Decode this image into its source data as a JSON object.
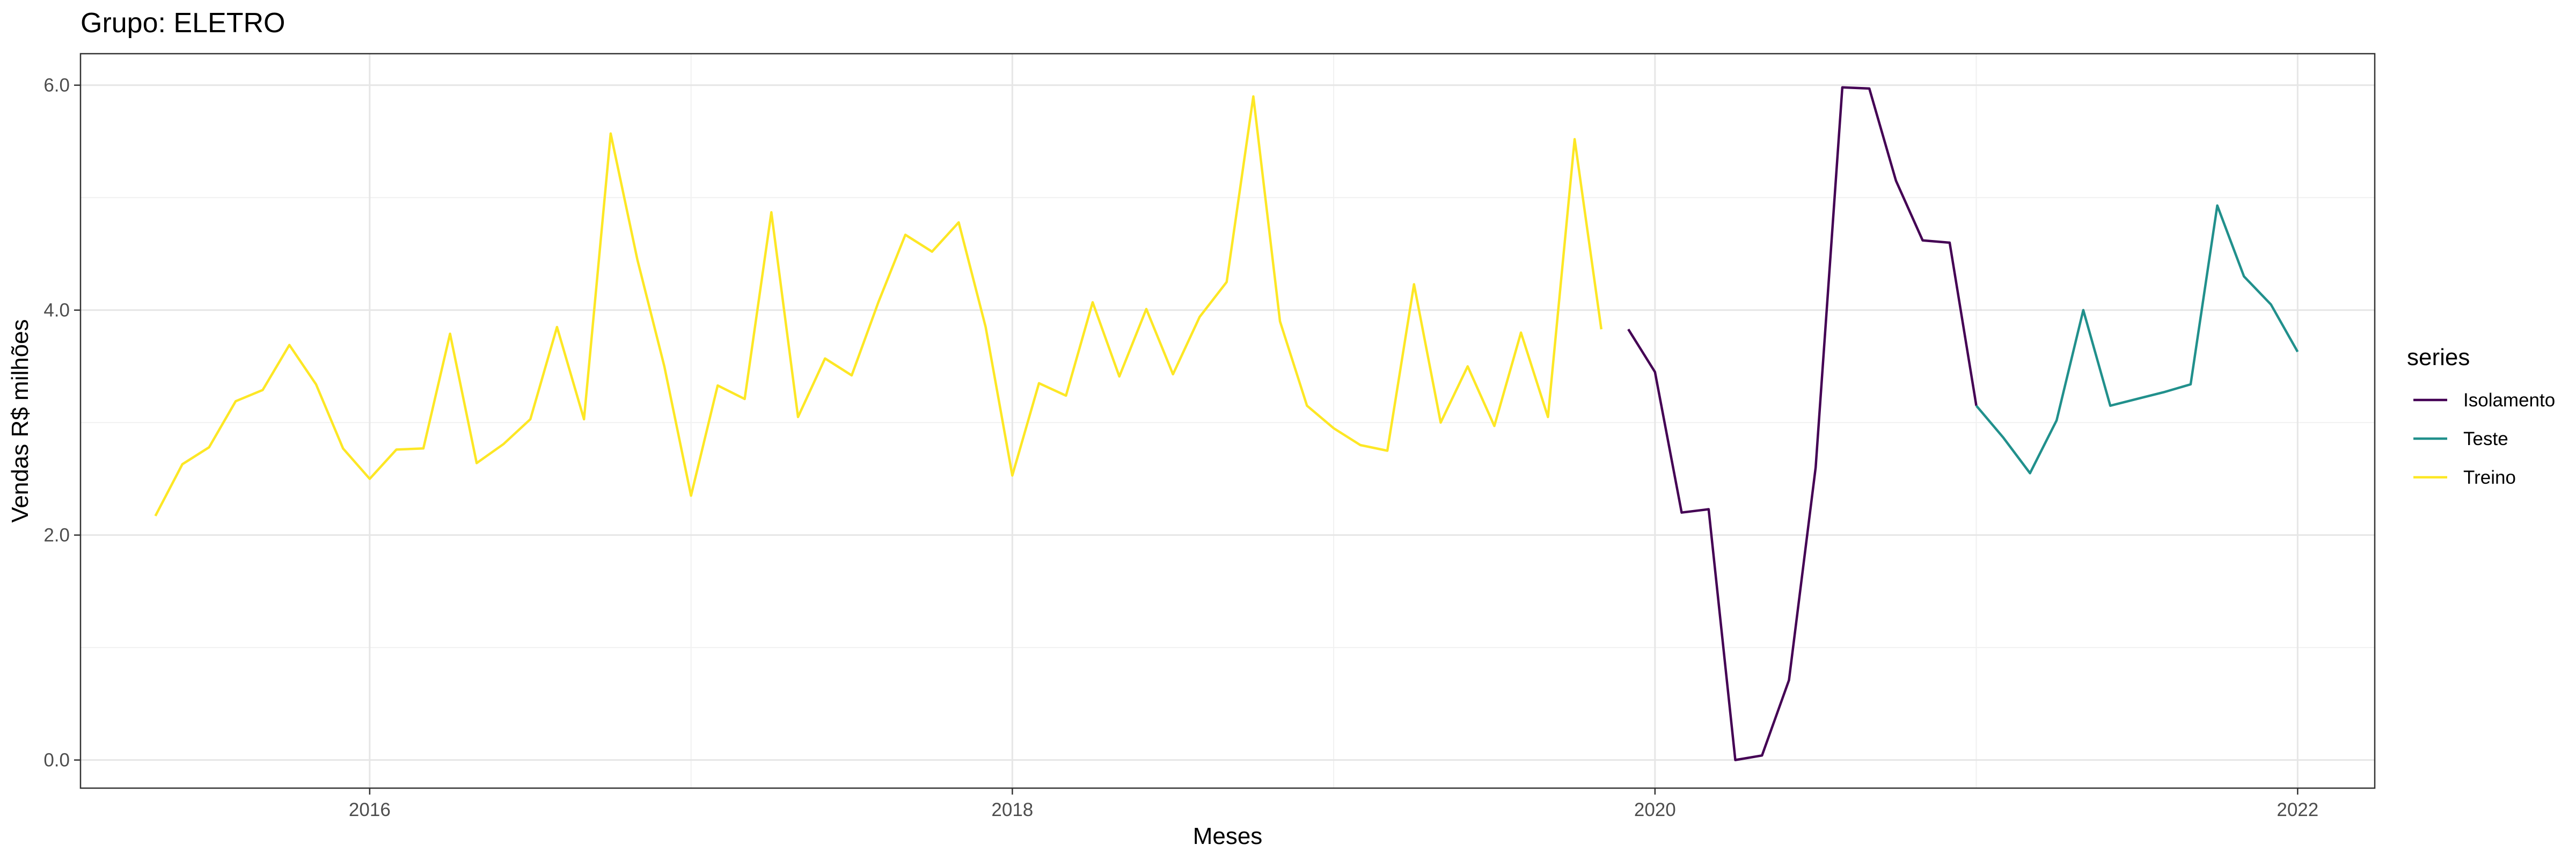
{
  "chart_data": {
    "type": "line",
    "title": "Grupo: ELETRO",
    "xlabel": "Meses",
    "ylabel": "Vendas R$ milhões",
    "xlim": [
      2015.1,
      2022.24
    ],
    "ylim": [
      -0.25,
      6.28
    ],
    "x_ticks": [
      2016,
      2018,
      2020,
      2022
    ],
    "x_tick_labels": [
      "2016",
      "2018",
      "2020",
      "2022"
    ],
    "y_ticks": [
      0,
      2,
      4,
      6
    ],
    "y_tick_labels": [
      "0.0",
      "2.0",
      "4.0",
      "6.0"
    ],
    "grid": true,
    "legend": {
      "title": "series",
      "placement": "right"
    },
    "series": [
      {
        "name": "Isolamento",
        "color": "#440154",
        "points": [
          [
            2019.917,
            3.83
          ],
          [
            2020.0,
            3.45
          ],
          [
            2020.083,
            2.2
          ],
          [
            2020.167,
            2.23
          ],
          [
            2020.25,
            0.0
          ],
          [
            2020.333,
            0.04
          ],
          [
            2020.417,
            0.71
          ],
          [
            2020.5,
            2.6
          ],
          [
            2020.583,
            5.98
          ],
          [
            2020.667,
            5.97
          ],
          [
            2020.75,
            5.15
          ],
          [
            2020.833,
            4.62
          ],
          [
            2020.917,
            4.6
          ],
          [
            2021.0,
            3.15
          ]
        ]
      },
      {
        "name": "Teste",
        "color": "#21908C",
        "points": [
          [
            2021.0,
            3.15
          ],
          [
            2021.083,
            2.87
          ],
          [
            2021.167,
            2.55
          ],
          [
            2021.25,
            3.02
          ],
          [
            2021.333,
            4.0
          ],
          [
            2021.417,
            3.15
          ],
          [
            2021.5,
            3.21
          ],
          [
            2021.583,
            3.27
          ],
          [
            2021.667,
            3.34
          ],
          [
            2021.75,
            4.93
          ],
          [
            2021.833,
            4.3
          ],
          [
            2021.917,
            4.05
          ],
          [
            2022.0,
            3.63
          ]
        ]
      },
      {
        "name": "Treino",
        "color": "#FDE725",
        "points": [
          [
            2015.333,
            2.17
          ],
          [
            2015.417,
            2.63
          ],
          [
            2015.5,
            2.78
          ],
          [
            2015.583,
            3.19
          ],
          [
            2015.667,
            3.29
          ],
          [
            2015.75,
            3.69
          ],
          [
            2015.833,
            3.34
          ],
          [
            2015.917,
            2.77
          ],
          [
            2016.0,
            2.5
          ],
          [
            2016.083,
            2.76
          ],
          [
            2016.167,
            2.77
          ],
          [
            2016.25,
            3.79
          ],
          [
            2016.333,
            2.64
          ],
          [
            2016.417,
            2.81
          ],
          [
            2016.5,
            3.03
          ],
          [
            2016.583,
            3.85
          ],
          [
            2016.667,
            3.03
          ],
          [
            2016.75,
            5.57
          ],
          [
            2016.833,
            4.45
          ],
          [
            2016.917,
            3.5
          ],
          [
            2017.0,
            2.35
          ],
          [
            2017.083,
            3.33
          ],
          [
            2017.167,
            3.21
          ],
          [
            2017.25,
            4.87
          ],
          [
            2017.333,
            3.05
          ],
          [
            2017.417,
            3.57
          ],
          [
            2017.5,
            3.42
          ],
          [
            2017.583,
            4.07
          ],
          [
            2017.667,
            4.67
          ],
          [
            2017.75,
            4.52
          ],
          [
            2017.833,
            4.78
          ],
          [
            2017.917,
            3.85
          ],
          [
            2018.0,
            2.53
          ],
          [
            2018.083,
            3.35
          ],
          [
            2018.167,
            3.24
          ],
          [
            2018.25,
            4.07
          ],
          [
            2018.333,
            3.41
          ],
          [
            2018.417,
            4.01
          ],
          [
            2018.5,
            3.43
          ],
          [
            2018.583,
            3.94
          ],
          [
            2018.667,
            4.25
          ],
          [
            2018.75,
            5.9
          ],
          [
            2018.833,
            3.9
          ],
          [
            2018.917,
            3.15
          ],
          [
            2019.0,
            2.95
          ],
          [
            2019.083,
            2.8
          ],
          [
            2019.167,
            2.75
          ],
          [
            2019.25,
            4.23
          ],
          [
            2019.333,
            3.0
          ],
          [
            2019.417,
            3.5
          ],
          [
            2019.5,
            2.97
          ],
          [
            2019.583,
            3.8
          ],
          [
            2019.667,
            3.05
          ],
          [
            2019.75,
            5.52
          ],
          [
            2019.833,
            3.83
          ]
        ]
      }
    ]
  }
}
